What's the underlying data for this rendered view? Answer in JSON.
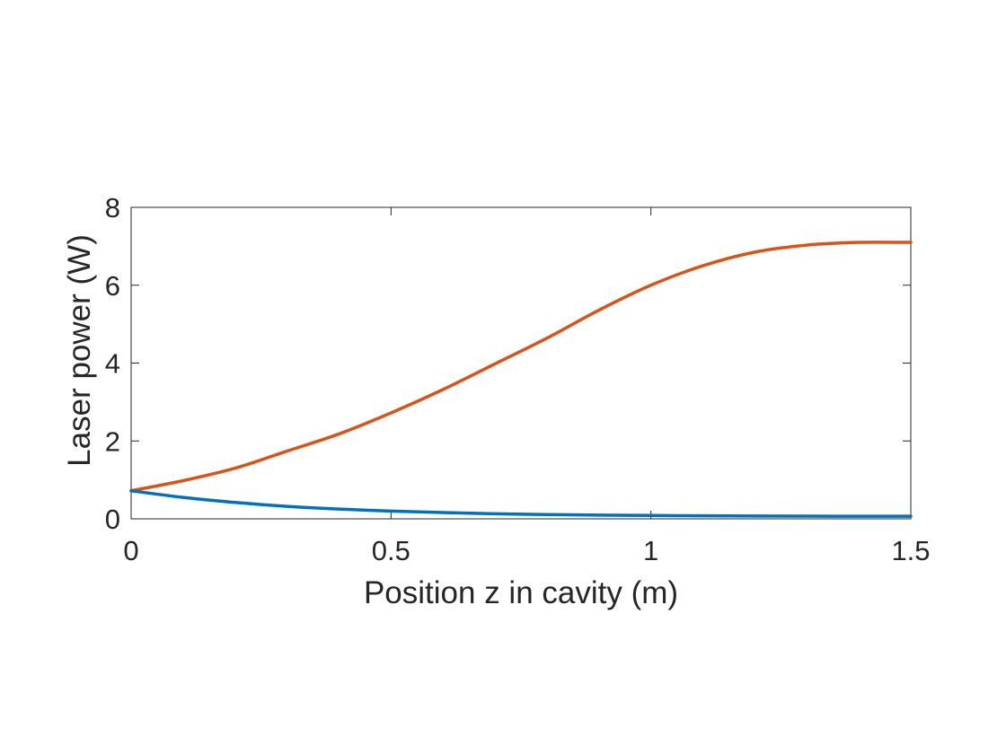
{
  "chart_data": {
    "type": "line",
    "title": "",
    "xlabel": "Position z in cavity (m)",
    "ylabel": "Laser power (W)",
    "xlim": [
      0,
      1.5
    ],
    "ylim": [
      0,
      8
    ],
    "xticks": [
      0,
      0.5,
      1,
      1.5
    ],
    "xtick_labels": [
      "0",
      "0.5",
      "1",
      "1.5"
    ],
    "yticks": [
      0,
      2,
      4,
      6,
      8
    ],
    "ytick_labels": [
      "0",
      "2",
      "4",
      "6",
      "8"
    ],
    "grid": false,
    "legend": "none",
    "series": [
      {
        "color": "#D95319",
        "x": [
          0,
          0.1,
          0.2,
          0.3,
          0.4,
          0.5,
          0.6,
          0.7,
          0.8,
          0.9,
          1.0,
          1.1,
          1.2,
          1.3,
          1.4,
          1.5
        ],
        "y": [
          0.72,
          0.98,
          1.3,
          1.74,
          2.18,
          2.72,
          3.32,
          3.98,
          4.64,
          5.36,
          6.0,
          6.5,
          6.85,
          7.03,
          7.1,
          7.1
        ]
      },
      {
        "color": "#0072BD",
        "x": [
          0,
          0.1,
          0.2,
          0.3,
          0.4,
          0.5,
          0.6,
          0.7,
          0.8,
          0.9,
          1.0,
          1.1,
          1.2,
          1.3,
          1.4,
          1.5
        ],
        "y": [
          0.72,
          0.55,
          0.42,
          0.32,
          0.25,
          0.2,
          0.16,
          0.13,
          0.11,
          0.095,
          0.085,
          0.078,
          0.072,
          0.068,
          0.066,
          0.065
        ]
      }
    ]
  }
}
